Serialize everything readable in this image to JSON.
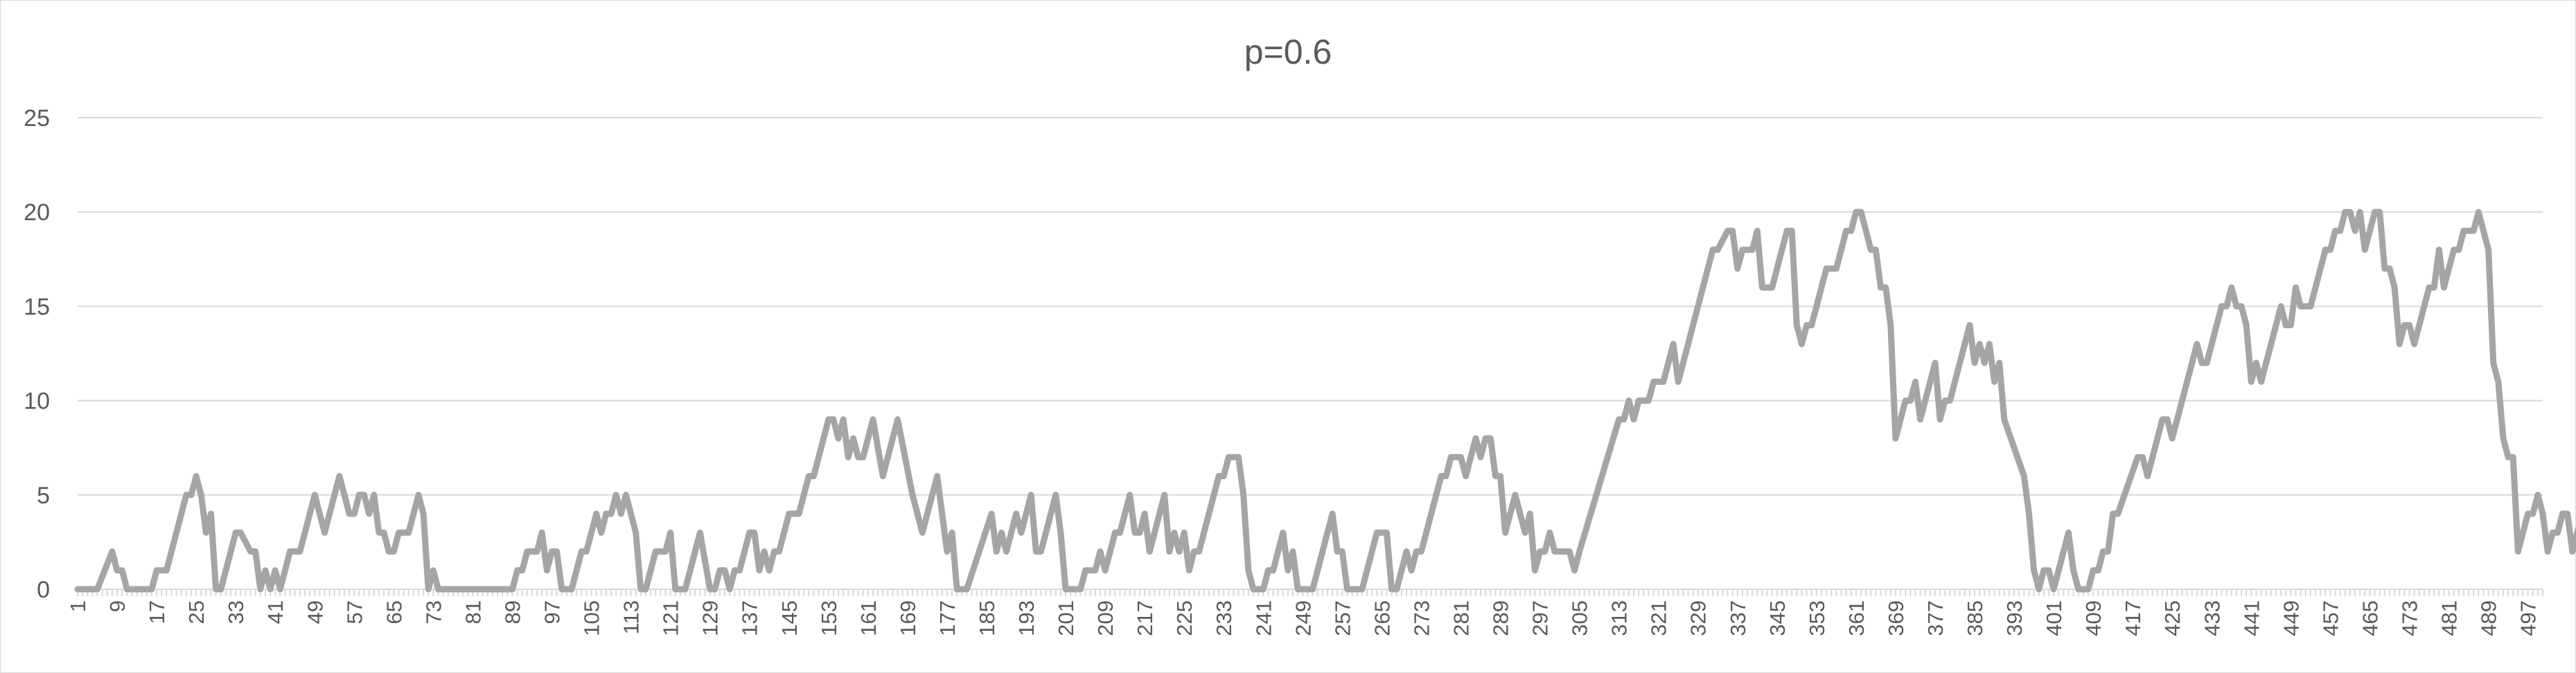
{
  "chart_data": {
    "type": "line",
    "title": "p=0.6",
    "xlabel": "",
    "ylabel": "",
    "ylim": [
      0,
      25
    ],
    "yticks": [
      0,
      5,
      10,
      15,
      20,
      25
    ],
    "xlim": [
      1,
      500
    ],
    "x_tick_start": 1,
    "x_tick_step": 8,
    "grid": true,
    "legend": "none",
    "color": "#a5a5a5",
    "series": [
      {
        "name": "",
        "points": [
          [
            1,
            0
          ],
          [
            5,
            0
          ],
          [
            8,
            2
          ],
          [
            9,
            1
          ],
          [
            10,
            1
          ],
          [
            11,
            0
          ],
          [
            16,
            0
          ],
          [
            17,
            1
          ],
          [
            19,
            1
          ],
          [
            23,
            5
          ],
          [
            24,
            5
          ],
          [
            25,
            6
          ],
          [
            26,
            5
          ],
          [
            27,
            3
          ],
          [
            28,
            4
          ],
          [
            29,
            0
          ],
          [
            30,
            0
          ],
          [
            33,
            3
          ],
          [
            34,
            3
          ],
          [
            36,
            2
          ],
          [
            37,
            2
          ],
          [
            38,
            0
          ],
          [
            39,
            1
          ],
          [
            40,
            0
          ],
          [
            41,
            1
          ],
          [
            42,
            0
          ],
          [
            44,
            2
          ],
          [
            46,
            2
          ],
          [
            49,
            5
          ],
          [
            51,
            3
          ],
          [
            54,
            6
          ],
          [
            56,
            4
          ],
          [
            57,
            4
          ],
          [
            58,
            5
          ],
          [
            59,
            5
          ],
          [
            60,
            4
          ],
          [
            61,
            5
          ],
          [
            62,
            3
          ],
          [
            63,
            3
          ],
          [
            64,
            2
          ],
          [
            65,
            2
          ],
          [
            66,
            3
          ],
          [
            68,
            3
          ],
          [
            70,
            5
          ],
          [
            71,
            4
          ],
          [
            72,
            0
          ],
          [
            73,
            1
          ],
          [
            74,
            0
          ],
          [
            89,
            0
          ],
          [
            90,
            1
          ],
          [
            91,
            1
          ],
          [
            92,
            2
          ],
          [
            94,
            2
          ],
          [
            95,
            3
          ],
          [
            96,
            1
          ],
          [
            97,
            2
          ],
          [
            98,
            2
          ],
          [
            99,
            0
          ],
          [
            101,
            0
          ],
          [
            103,
            2
          ],
          [
            104,
            2
          ],
          [
            106,
            4
          ],
          [
            107,
            3
          ],
          [
            108,
            4
          ],
          [
            109,
            4
          ],
          [
            110,
            5
          ],
          [
            111,
            4
          ],
          [
            112,
            5
          ],
          [
            114,
            3
          ],
          [
            115,
            0
          ],
          [
            116,
            0
          ],
          [
            118,
            2
          ],
          [
            120,
            2
          ],
          [
            121,
            3
          ],
          [
            122,
            0
          ],
          [
            124,
            0
          ],
          [
            127,
            3
          ],
          [
            129,
            0
          ],
          [
            130,
            0
          ],
          [
            131,
            1
          ],
          [
            132,
            1
          ],
          [
            133,
            0
          ],
          [
            134,
            1
          ],
          [
            135,
            1
          ],
          [
            137,
            3
          ],
          [
            138,
            3
          ],
          [
            139,
            1
          ],
          [
            140,
            2
          ],
          [
            141,
            1
          ],
          [
            142,
            2
          ],
          [
            143,
            2
          ],
          [
            145,
            4
          ],
          [
            147,
            4
          ],
          [
            149,
            6
          ],
          [
            150,
            6
          ],
          [
            153,
            9
          ],
          [
            154,
            9
          ],
          [
            155,
            8
          ],
          [
            156,
            9
          ],
          [
            157,
            7
          ],
          [
            158,
            8
          ],
          [
            159,
            7
          ],
          [
            160,
            7
          ],
          [
            162,
            9
          ],
          [
            164,
            6
          ],
          [
            167,
            9
          ],
          [
            170,
            5
          ],
          [
            172,
            3
          ],
          [
            175,
            6
          ],
          [
            177,
            2
          ],
          [
            178,
            3
          ],
          [
            179,
            0
          ],
          [
            181,
            0
          ],
          [
            186,
            4
          ],
          [
            187,
            2
          ],
          [
            188,
            3
          ],
          [
            189,
            2
          ],
          [
            191,
            4
          ],
          [
            192,
            3
          ],
          [
            194,
            5
          ],
          [
            195,
            2
          ],
          [
            196,
            2
          ],
          [
            199,
            5
          ],
          [
            200,
            3
          ],
          [
            201,
            0
          ],
          [
            204,
            0
          ],
          [
            205,
            1
          ],
          [
            207,
            1
          ],
          [
            208,
            2
          ],
          [
            209,
            1
          ],
          [
            211,
            3
          ],
          [
            212,
            3
          ],
          [
            214,
            5
          ],
          [
            215,
            3
          ],
          [
            216,
            3
          ],
          [
            217,
            4
          ],
          [
            218,
            2
          ],
          [
            221,
            5
          ],
          [
            222,
            2
          ],
          [
            223,
            3
          ],
          [
            224,
            2
          ],
          [
            225,
            3
          ],
          [
            226,
            1
          ],
          [
            227,
            2
          ],
          [
            228,
            2
          ],
          [
            231,
            5
          ],
          [
            232,
            6
          ],
          [
            233,
            6
          ],
          [
            234,
            7
          ],
          [
            236,
            7
          ],
          [
            237,
            5
          ],
          [
            238,
            1
          ],
          [
            239,
            0
          ],
          [
            241,
            0
          ],
          [
            242,
            1
          ],
          [
            243,
            1
          ],
          [
            245,
            3
          ],
          [
            246,
            1
          ],
          [
            247,
            2
          ],
          [
            248,
            0
          ],
          [
            251,
            0
          ],
          [
            255,
            4
          ],
          [
            256,
            2
          ],
          [
            257,
            2
          ],
          [
            258,
            0
          ],
          [
            261,
            0
          ],
          [
            264,
            3
          ],
          [
            266,
            3
          ],
          [
            267,
            0
          ],
          [
            268,
            0
          ],
          [
            270,
            2
          ],
          [
            271,
            1
          ],
          [
            272,
            2
          ],
          [
            273,
            2
          ],
          [
            277,
            6
          ],
          [
            278,
            6
          ],
          [
            279,
            7
          ],
          [
            281,
            7
          ],
          [
            282,
            6
          ],
          [
            284,
            8
          ],
          [
            285,
            7
          ],
          [
            286,
            8
          ],
          [
            287,
            8
          ],
          [
            288,
            6
          ],
          [
            289,
            6
          ],
          [
            290,
            3
          ],
          [
            292,
            5
          ],
          [
            294,
            3
          ],
          [
            295,
            4
          ],
          [
            296,
            1
          ],
          [
            297,
            2
          ],
          [
            298,
            2
          ],
          [
            299,
            3
          ],
          [
            300,
            2
          ],
          [
            303,
            2
          ],
          [
            304,
            1
          ],
          [
            305,
            2
          ],
          [
            313,
            9
          ],
          [
            314,
            9
          ],
          [
            315,
            10
          ],
          [
            316,
            9
          ],
          [
            317,
            10
          ],
          [
            319,
            10
          ],
          [
            320,
            11
          ],
          [
            322,
            11
          ],
          [
            324,
            13
          ],
          [
            325,
            11
          ],
          [
            332,
            18
          ],
          [
            333,
            18
          ],
          [
            335,
            19
          ],
          [
            336,
            19
          ],
          [
            337,
            17
          ],
          [
            338,
            18
          ],
          [
            340,
            18
          ],
          [
            341,
            19
          ],
          [
            342,
            16
          ],
          [
            344,
            16
          ],
          [
            345,
            17
          ],
          [
            347,
            19
          ],
          [
            348,
            19
          ],
          [
            349,
            14
          ],
          [
            350,
            13
          ],
          [
            351,
            14
          ],
          [
            352,
            14
          ],
          [
            355,
            17
          ],
          [
            357,
            17
          ],
          [
            359,
            19
          ],
          [
            360,
            19
          ],
          [
            361,
            20
          ],
          [
            362,
            20
          ],
          [
            363,
            19
          ],
          [
            364,
            18
          ],
          [
            365,
            18
          ],
          [
            366,
            16
          ],
          [
            367,
            16
          ],
          [
            368,
            14
          ],
          [
            369,
            8
          ],
          [
            370,
            9
          ],
          [
            371,
            10
          ],
          [
            372,
            10
          ],
          [
            373,
            11
          ],
          [
            374,
            9
          ],
          [
            375,
            10
          ],
          [
            377,
            12
          ],
          [
            378,
            9
          ],
          [
            379,
            10
          ],
          [
            380,
            10
          ],
          [
            384,
            14
          ],
          [
            385,
            12
          ],
          [
            386,
            13
          ],
          [
            387,
            12
          ],
          [
            388,
            13
          ],
          [
            389,
            11
          ],
          [
            390,
            12
          ],
          [
            391,
            9
          ],
          [
            395,
            6
          ],
          [
            396,
            4
          ],
          [
            397,
            1
          ],
          [
            398,
            0
          ],
          [
            399,
            1
          ],
          [
            400,
            1
          ],
          [
            401,
            0
          ],
          [
            404,
            3
          ],
          [
            405,
            1
          ],
          [
            406,
            0
          ],
          [
            408,
            0
          ],
          [
            409,
            1
          ],
          [
            410,
            1
          ],
          [
            411,
            2
          ],
          [
            412,
            2
          ],
          [
            413,
            4
          ],
          [
            414,
            4
          ],
          [
            418,
            7
          ],
          [
            419,
            7
          ],
          [
            420,
            6
          ],
          [
            423,
            9
          ],
          [
            424,
            9
          ],
          [
            425,
            8
          ],
          [
            429,
            12
          ],
          [
            430,
            13
          ],
          [
            431,
            12
          ],
          [
            432,
            12
          ],
          [
            435,
            15
          ],
          [
            436,
            15
          ],
          [
            437,
            16
          ],
          [
            438,
            15
          ],
          [
            439,
            15
          ],
          [
            440,
            14
          ],
          [
            441,
            11
          ],
          [
            442,
            12
          ],
          [
            443,
            11
          ],
          [
            446,
            14
          ],
          [
            447,
            15
          ],
          [
            448,
            14
          ],
          [
            449,
            14
          ],
          [
            450,
            16
          ],
          [
            451,
            15
          ],
          [
            452,
            15
          ],
          [
            453,
            15
          ],
          [
            456,
            18
          ],
          [
            457,
            18
          ],
          [
            458,
            19
          ],
          [
            459,
            19
          ],
          [
            460,
            20
          ],
          [
            461,
            20
          ],
          [
            462,
            19
          ],
          [
            463,
            20
          ],
          [
            464,
            18
          ],
          [
            465,
            19
          ],
          [
            466,
            20
          ],
          [
            467,
            20
          ],
          [
            468,
            17
          ],
          [
            469,
            17
          ],
          [
            470,
            16
          ],
          [
            471,
            13
          ],
          [
            472,
            14
          ],
          [
            473,
            14
          ],
          [
            474,
            13
          ],
          [
            477,
            16
          ],
          [
            478,
            16
          ],
          [
            479,
            18
          ],
          [
            480,
            16
          ],
          [
            481,
            17
          ],
          [
            482,
            18
          ],
          [
            483,
            18
          ],
          [
            484,
            19
          ],
          [
            485,
            19
          ],
          [
            486,
            19
          ],
          [
            487,
            20
          ],
          [
            488,
            19
          ],
          [
            489,
            18
          ],
          [
            490,
            12
          ],
          [
            491,
            11
          ],
          [
            492,
            8
          ],
          [
            493,
            7
          ],
          [
            494,
            7
          ],
          [
            495,
            2
          ],
          [
            497,
            4
          ],
          [
            498,
            4
          ],
          [
            499,
            5
          ],
          [
            500,
            4
          ],
          [
            501,
            2
          ],
          [
            502,
            3
          ],
          [
            503,
            3
          ],
          [
            504,
            4
          ],
          [
            505,
            4
          ],
          [
            506,
            2
          ],
          [
            509,
            5
          ]
        ]
      }
    ]
  }
}
